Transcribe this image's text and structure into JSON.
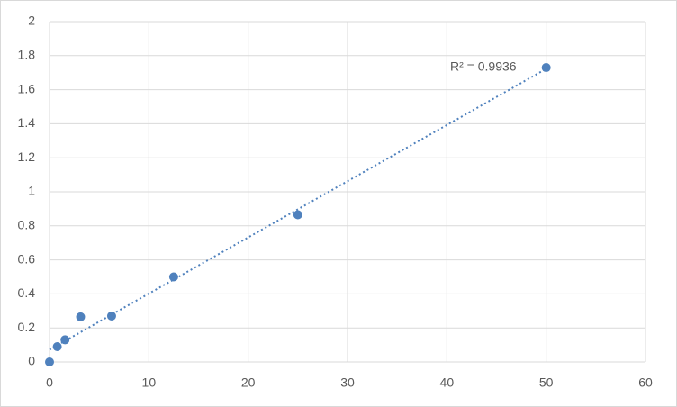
{
  "chart_data": {
    "type": "scatter",
    "x": [
      0,
      0.78,
      1.56,
      3.125,
      6.25,
      12.5,
      25,
      50
    ],
    "values": [
      0,
      0.09,
      0.13,
      0.265,
      0.27,
      0.5,
      0.865,
      1.73
    ],
    "color": "#4f81bd",
    "trendline": "linear",
    "annotation": "R² = 0.9936",
    "xlim": [
      0,
      60
    ],
    "xticks": [
      0,
      10,
      20,
      30,
      40,
      50,
      60
    ],
    "ylim": [
      0,
      2
    ],
    "yticks": [
      0,
      0.2,
      0.4,
      0.6,
      0.8,
      1,
      1.2,
      1.4,
      1.6,
      1.8,
      2
    ],
    "grid": true
  }
}
